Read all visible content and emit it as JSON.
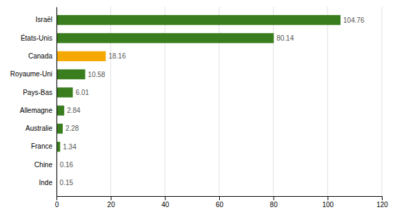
{
  "chart_data": {
    "type": "bar",
    "orientation": "horizontal",
    "categories": [
      "Inde",
      "Chine",
      "France",
      "Australie",
      "Allemagne",
      "Pays-Bas",
      "Royaume-Uni",
      "Canada",
      "États-Unis",
      "Israël"
    ],
    "values": [
      0.15,
      0.16,
      1.34,
      2.28,
      2.84,
      6.01,
      10.58,
      18.16,
      80.14,
      104.76
    ],
    "colors": [
      "#3a7d1e",
      "#3a7d1e",
      "#3a7d1e",
      "#3a7d1e",
      "#3a7d1e",
      "#3a7d1e",
      "#3a7d1e",
      "#f5a800",
      "#3a7d1e",
      "#3a7d1e"
    ],
    "xlim": [
      0,
      120
    ],
    "xticks": [
      0,
      20,
      40,
      60,
      80,
      100,
      120
    ],
    "grid": true,
    "data_labels": true
  }
}
